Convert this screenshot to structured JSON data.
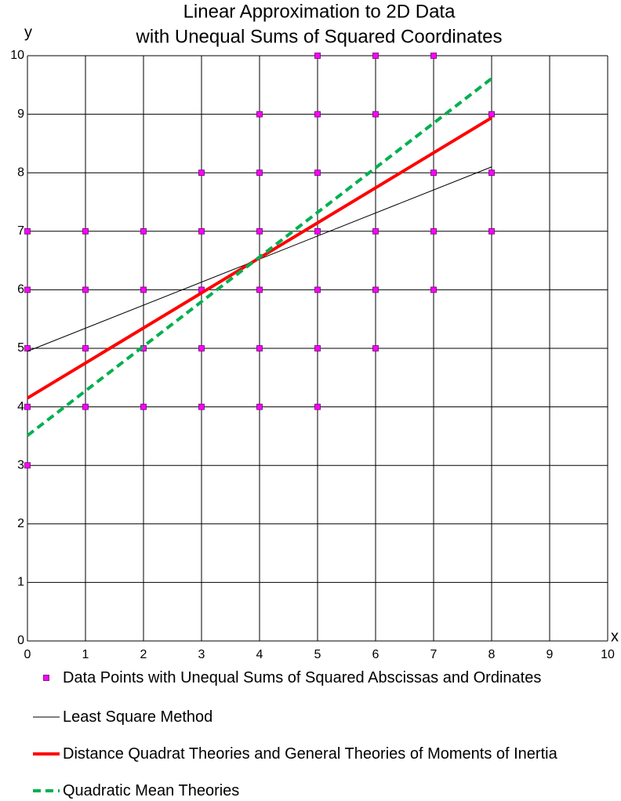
{
  "chart_data": {
    "type": "scatter",
    "title": [
      "Linear Approximation to 2D Data",
      "with Unequal Sums of Squared Coordinates"
    ],
    "x_label": "x",
    "y_label": "y",
    "xlim": [
      0,
      10
    ],
    "ylim": [
      0,
      10
    ],
    "xticks": [
      0,
      1,
      2,
      3,
      4,
      5,
      6,
      7,
      8,
      9,
      10
    ],
    "yticks": [
      0,
      1,
      2,
      3,
      4,
      5,
      6,
      7,
      8,
      9,
      10
    ],
    "grid": true,
    "series": [
      {
        "name": "Data Points with Unequal Sums of Squared Abscissas and Ordinates",
        "mode": "markers",
        "color": "#ff00ff",
        "x": [
          0,
          0,
          0,
          0,
          0,
          1,
          1,
          1,
          1,
          2,
          2,
          2,
          2,
          3,
          3,
          3,
          3,
          3,
          4,
          4,
          4,
          4,
          4,
          4,
          5,
          5,
          5,
          5,
          5,
          5,
          5,
          6,
          6,
          6,
          6,
          6,
          7,
          7,
          7,
          7,
          8,
          8,
          8
        ],
        "y": [
          3,
          4,
          5,
          6,
          7,
          4,
          5,
          6,
          7,
          4,
          5,
          6,
          7,
          4,
          5,
          6,
          7,
          8,
          4,
          5,
          6,
          7,
          8,
          9,
          4,
          5,
          6,
          7,
          8,
          9,
          10,
          5,
          6,
          7,
          9,
          10,
          6,
          7,
          8,
          10,
          7,
          8,
          9
        ]
      },
      {
        "name": "Least Square Method",
        "mode": "line",
        "color": "#000000",
        "width": 1,
        "dash": false,
        "x": [
          0,
          8
        ],
        "y": [
          4.95,
          8.1
        ]
      },
      {
        "name": "Distance Quadrat Theories and General Theories of Moments of Inertia",
        "mode": "line",
        "color": "#ff0000",
        "width": 4,
        "dash": false,
        "x": [
          0,
          8
        ],
        "y": [
          4.15,
          8.94
        ]
      },
      {
        "name": "Quadratic Mean Theories",
        "mode": "line",
        "color": "#00b050",
        "width": 4,
        "dash": true,
        "x": [
          0,
          8
        ],
        "y": [
          3.51,
          9.61
        ]
      }
    ]
  }
}
